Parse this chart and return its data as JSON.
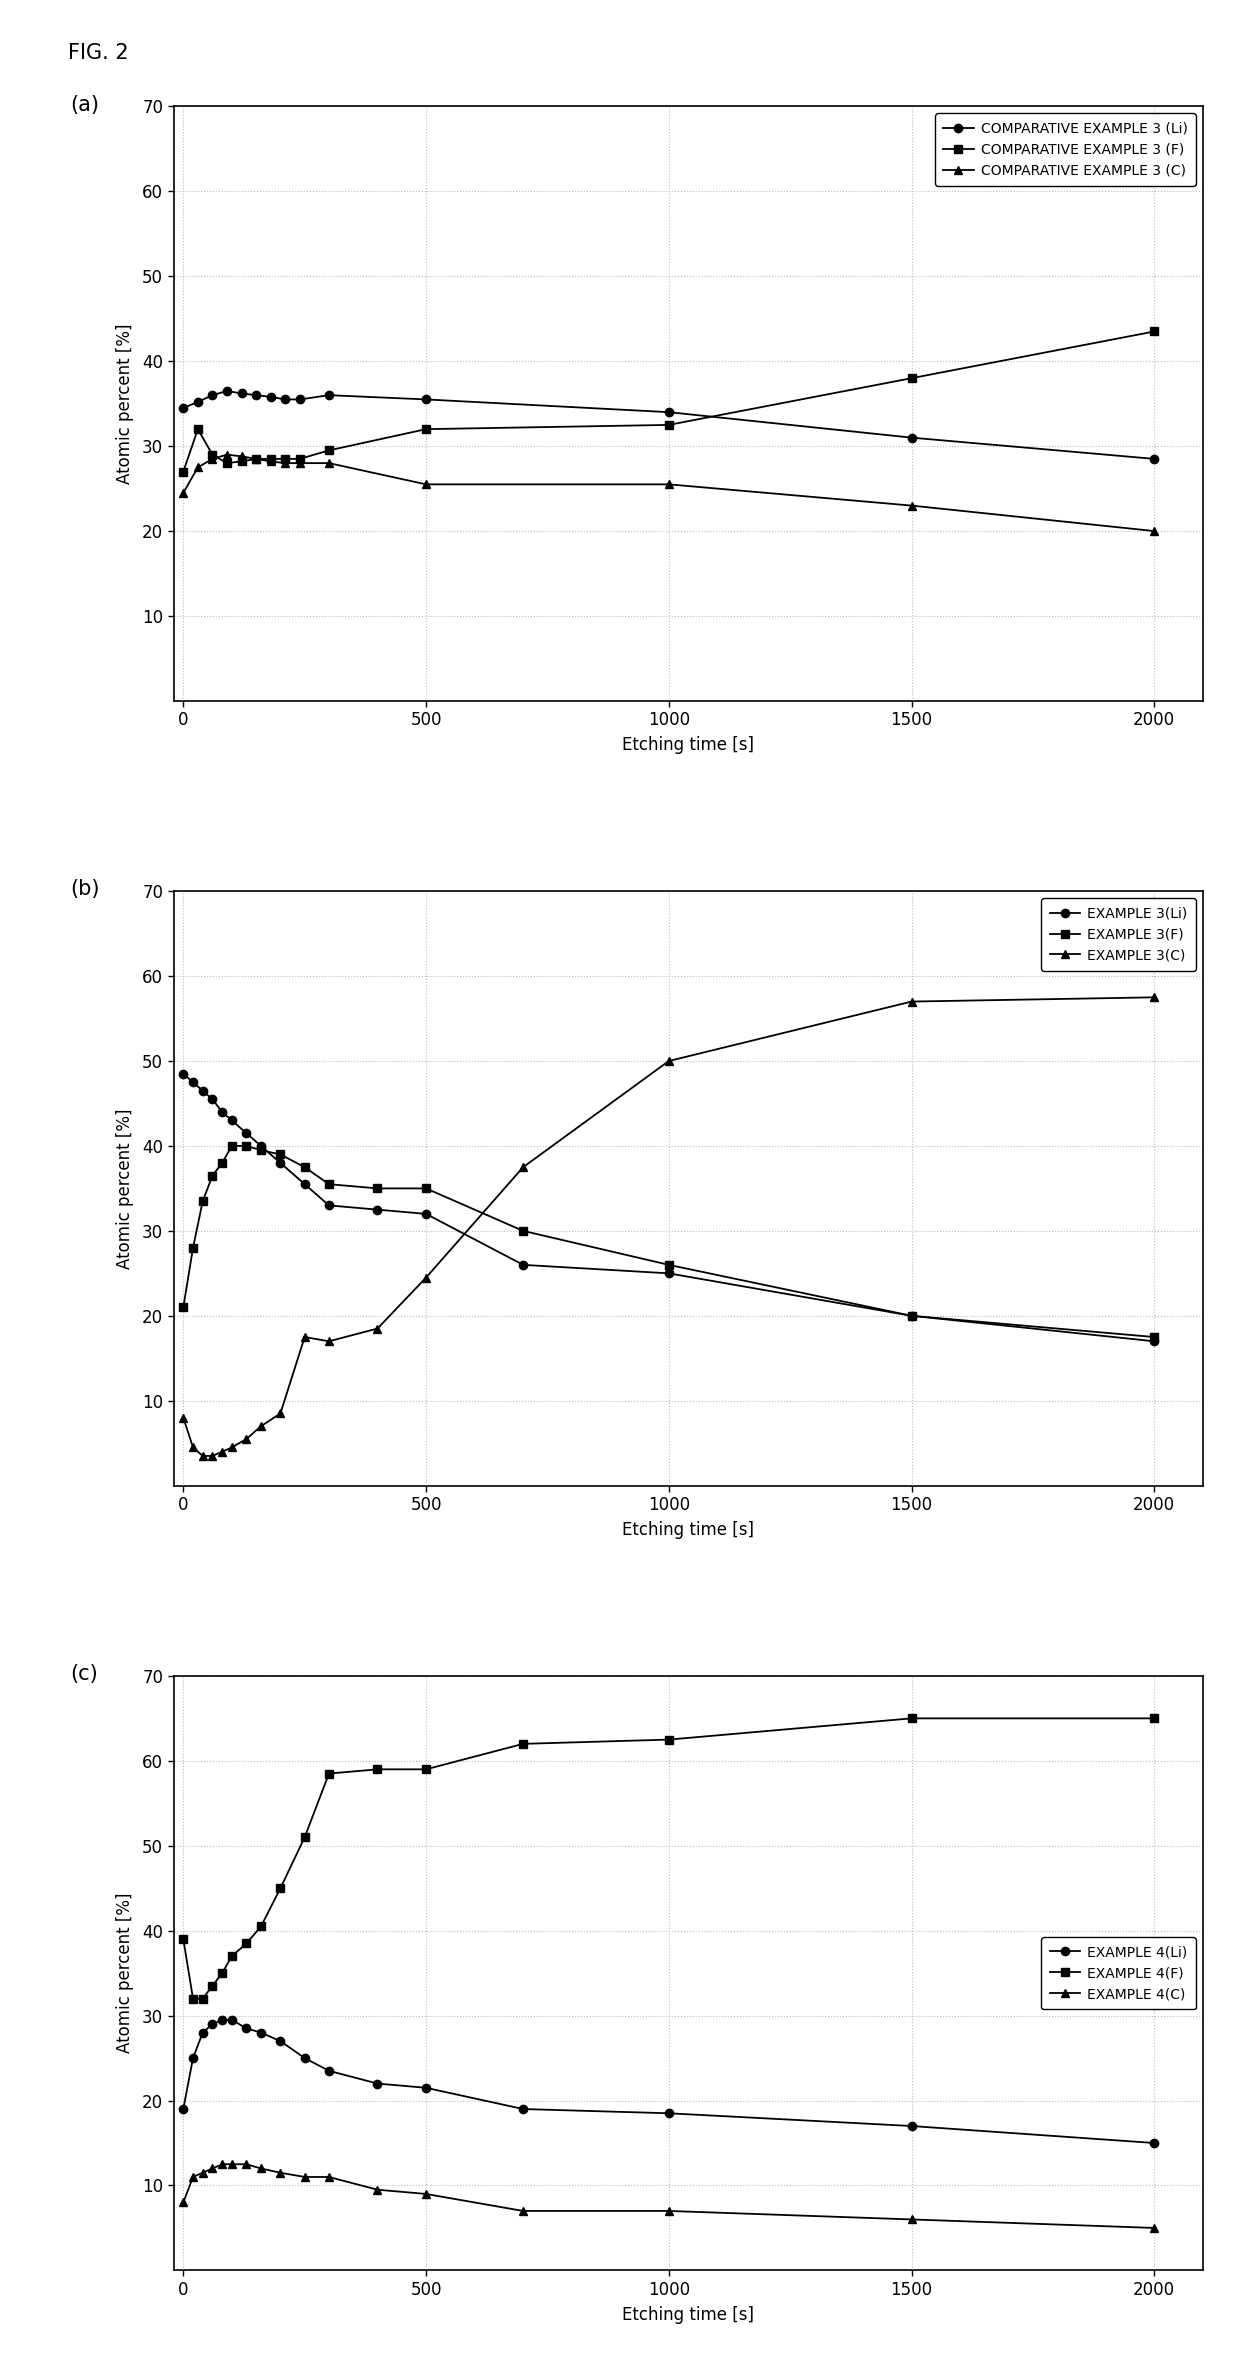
{
  "fig_label": "FIG. 2",
  "subplots": [
    {
      "label": "(a)",
      "series": [
        {
          "name": "COMPARATIVE EXAMPLE 3 (Li)",
          "marker": "o",
          "x": [
            0,
            30,
            60,
            90,
            120,
            150,
            180,
            210,
            240,
            300,
            500,
            1000,
            1500,
            2000
          ],
          "y": [
            34.5,
            35.2,
            36.0,
            36.5,
            36.2,
            36.0,
            35.8,
            35.5,
            35.5,
            36.0,
            35.5,
            34.0,
            31.0,
            28.5
          ]
        },
        {
          "name": "COMPARATIVE EXAMPLE 3 (F)",
          "marker": "s",
          "x": [
            0,
            30,
            60,
            90,
            120,
            150,
            180,
            210,
            240,
            300,
            500,
            1000,
            1500,
            2000
          ],
          "y": [
            27.0,
            32.0,
            29.0,
            28.0,
            28.2,
            28.5,
            28.5,
            28.5,
            28.5,
            29.5,
            32.0,
            32.5,
            38.0,
            43.5
          ]
        },
        {
          "name": "COMPARATIVE EXAMPLE 3 (C)",
          "marker": "^",
          "x": [
            0,
            30,
            60,
            90,
            120,
            150,
            180,
            210,
            240,
            300,
            500,
            1000,
            1500,
            2000
          ],
          "y": [
            24.5,
            27.5,
            28.5,
            29.0,
            28.8,
            28.5,
            28.2,
            28.0,
            28.0,
            28.0,
            25.5,
            25.5,
            23.0,
            20.0
          ]
        }
      ],
      "ylim": [
        0,
        70
      ],
      "yticks": [
        10,
        20,
        30,
        40,
        50,
        60,
        70
      ],
      "xlim": [
        -20,
        2100
      ],
      "xticks": [
        0,
        500,
        1000,
        1500,
        2000
      ],
      "xlabel": "Etching time [s]",
      "ylabel": "Atomic percent [%]",
      "legend_loc": "upper right"
    },
    {
      "label": "(b)",
      "series": [
        {
          "name": "EXAMPLE 3(Li)",
          "marker": "o",
          "x": [
            0,
            20,
            40,
            60,
            80,
            100,
            130,
            160,
            200,
            250,
            300,
            400,
            500,
            700,
            1000,
            1500,
            2000
          ],
          "y": [
            48.5,
            47.5,
            46.5,
            45.5,
            44.0,
            43.0,
            41.5,
            40.0,
            38.0,
            35.5,
            33.0,
            32.5,
            32.0,
            26.0,
            25.0,
            20.0,
            17.0
          ]
        },
        {
          "name": "EXAMPLE 3(F)",
          "marker": "s",
          "x": [
            0,
            20,
            40,
            60,
            80,
            100,
            130,
            160,
            200,
            250,
            300,
            400,
            500,
            700,
            1000,
            1500,
            2000
          ],
          "y": [
            21.0,
            28.0,
            33.5,
            36.5,
            38.0,
            40.0,
            40.0,
            39.5,
            39.0,
            37.5,
            35.5,
            35.0,
            35.0,
            30.0,
            26.0,
            20.0,
            17.5
          ]
        },
        {
          "name": "EXAMPLE 3(C)",
          "marker": "^",
          "x": [
            0,
            20,
            40,
            60,
            80,
            100,
            130,
            160,
            200,
            250,
            300,
            400,
            500,
            700,
            1000,
            1500,
            2000
          ],
          "y": [
            8.0,
            4.5,
            3.5,
            3.5,
            4.0,
            4.5,
            5.5,
            7.0,
            8.5,
            17.5,
            17.0,
            18.5,
            24.5,
            37.5,
            50.0,
            57.0,
            57.5
          ]
        }
      ],
      "ylim": [
        0,
        70
      ],
      "yticks": [
        10,
        20,
        30,
        40,
        50,
        60,
        70
      ],
      "xlim": [
        -20,
        2100
      ],
      "xticks": [
        0,
        500,
        1000,
        1500,
        2000
      ],
      "xlabel": "Etching time [s]",
      "ylabel": "Atomic percent [%]",
      "legend_loc": "upper right"
    },
    {
      "label": "(c)",
      "series": [
        {
          "name": "EXAMPLE 4(Li)",
          "marker": "o",
          "x": [
            0,
            20,
            40,
            60,
            80,
            100,
            130,
            160,
            200,
            250,
            300,
            400,
            500,
            700,
            1000,
            1500,
            2000
          ],
          "y": [
            19.0,
            25.0,
            28.0,
            29.0,
            29.5,
            29.5,
            28.5,
            28.0,
            27.0,
            25.0,
            23.5,
            22.0,
            21.5,
            19.0,
            18.5,
            17.0,
            15.0
          ]
        },
        {
          "name": "EXAMPLE 4(F)",
          "marker": "s",
          "x": [
            0,
            20,
            40,
            60,
            80,
            100,
            130,
            160,
            200,
            250,
            300,
            400,
            500,
            700,
            1000,
            1500,
            2000
          ],
          "y": [
            39.0,
            32.0,
            32.0,
            33.5,
            35.0,
            37.0,
            38.5,
            40.5,
            45.0,
            51.0,
            58.5,
            59.0,
            59.0,
            62.0,
            62.5,
            65.0,
            65.0
          ]
        },
        {
          "name": "EXAMPLE 4(C)",
          "marker": "^",
          "x": [
            0,
            20,
            40,
            60,
            80,
            100,
            130,
            160,
            200,
            250,
            300,
            400,
            500,
            700,
            1000,
            1500,
            2000
          ],
          "y": [
            8.0,
            11.0,
            11.5,
            12.0,
            12.5,
            12.5,
            12.5,
            12.0,
            11.5,
            11.0,
            11.0,
            9.5,
            9.0,
            7.0,
            7.0,
            6.0,
            5.0
          ]
        }
      ],
      "ylim": [
        0,
        70
      ],
      "yticks": [
        10,
        20,
        30,
        40,
        50,
        60,
        70
      ],
      "xlim": [
        -20,
        2100
      ],
      "xticks": [
        0,
        500,
        1000,
        1500,
        2000
      ],
      "xlabel": "Etching time [s]",
      "ylabel": "Atomic percent [%]",
      "legend_loc": "center right"
    }
  ],
  "line_color": "#000000",
  "marker_size": 6,
  "line_width": 1.3,
  "font_family": "DejaVu Sans",
  "tick_fontsize": 12,
  "label_fontsize": 12,
  "legend_fontsize": 10,
  "background_color": "#ffffff",
  "grid_color": "#bbbbbb",
  "grid_linestyle": ":",
  "grid_linewidth": 0.8
}
